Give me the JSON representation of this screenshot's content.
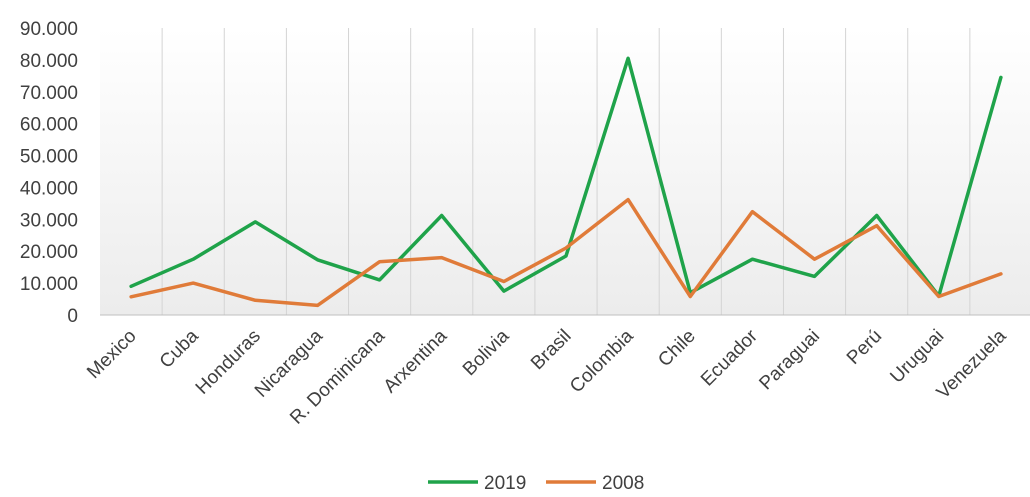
{
  "chart_data": {
    "type": "line",
    "title": "",
    "xlabel": "",
    "ylabel": "",
    "categories": [
      "Mexico",
      "Cuba",
      "Honduras",
      "Nicaragua",
      "R. Dominicana",
      "Arxentina",
      "Bolivia",
      "Brasil",
      "Colombia",
      "Chile",
      "Ecuador",
      "Paraguai",
      "Perú",
      "Uruguai",
      "Venezuela"
    ],
    "ylim": [
      0,
      90000
    ],
    "yticks": [
      0,
      10000,
      20000,
      30000,
      40000,
      50000,
      60000,
      70000,
      80000,
      90000
    ],
    "ytick_labels": [
      "0",
      "10.000",
      "20.000",
      "30.000",
      "40.000",
      "50.000",
      "60.000",
      "70.000",
      "80.000",
      "90.000"
    ],
    "grid": "vertical",
    "legend_position": "bottom",
    "series": [
      {
        "name": "2019",
        "color": "#1fa34a",
        "values": [
          9000,
          17500,
          29200,
          17300,
          11000,
          31200,
          7500,
          18500,
          80500,
          7000,
          17500,
          12100,
          31200,
          6000,
          74500
        ]
      },
      {
        "name": "2008",
        "color": "#e07b39",
        "values": [
          5700,
          10000,
          4600,
          3000,
          16700,
          18000,
          10500,
          21000,
          36200,
          5800,
          32400,
          17500,
          28000,
          5800,
          12900
        ]
      }
    ]
  }
}
